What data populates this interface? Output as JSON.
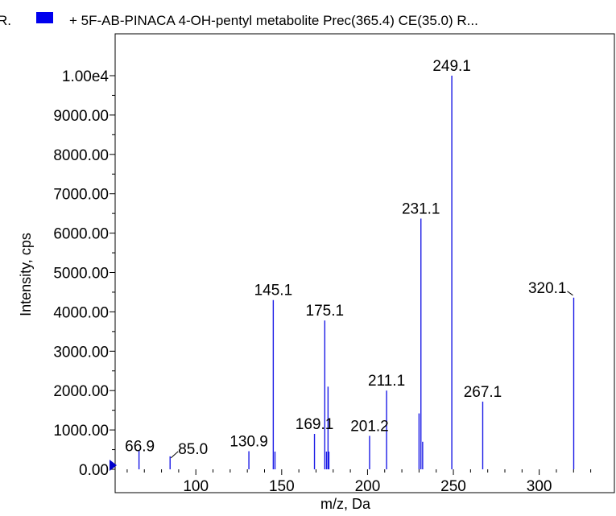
{
  "chart_data": {
    "type": "bar",
    "title_prefix": "R.",
    "title": "+ 5F-AB-PINACA 4-OH-pentyl metabolite Prec(365.4) CE(35.0) R...",
    "legend_color": "#0000ee",
    "peak_color": "#1a1ae6",
    "xlabel": "m/z, Da",
    "ylabel": "Intensity, cps",
    "xlim": [
      53,
      333
    ],
    "ylim": [
      0,
      10000
    ],
    "x_ticks": [
      {
        "value": 100,
        "label": "100"
      },
      {
        "value": 150,
        "label": "150"
      },
      {
        "value": 200,
        "label": "200"
      },
      {
        "value": 250,
        "label": "250"
      },
      {
        "value": 300,
        "label": "300"
      }
    ],
    "y_ticks": [
      {
        "value": 0,
        "label": "0.00"
      },
      {
        "value": 1000,
        "label": "1000.00"
      },
      {
        "value": 2000,
        "label": "2000.00"
      },
      {
        "value": 3000,
        "label": "3000.00"
      },
      {
        "value": 4000,
        "label": "4000.00"
      },
      {
        "value": 5000,
        "label": "5000.00"
      },
      {
        "value": 6000,
        "label": "6000.00"
      },
      {
        "value": 7000,
        "label": "7000.00"
      },
      {
        "value": 8000,
        "label": "8000.00"
      },
      {
        "value": 9000,
        "label": "9000.00"
      },
      {
        "value": 10000,
        "label": "1.00e4"
      }
    ],
    "peaks": [
      {
        "mz": 66.9,
        "intensity": 480,
        "label": "66.9"
      },
      {
        "mz": 85.0,
        "intensity": 330,
        "label": "85.0"
      },
      {
        "mz": 130.9,
        "intensity": 460,
        "label": "130.9"
      },
      {
        "mz": 145.1,
        "intensity": 4300,
        "label": "145.1"
      },
      {
        "mz": 146.1,
        "intensity": 450,
        "label": ""
      },
      {
        "mz": 169.1,
        "intensity": 900,
        "label": "169.1"
      },
      {
        "mz": 175.1,
        "intensity": 3780,
        "label": "175.1"
      },
      {
        "mz": 176.1,
        "intensity": 450,
        "label": ""
      },
      {
        "mz": 177.0,
        "intensity": 2100,
        "label": ""
      },
      {
        "mz": 177.5,
        "intensity": 450,
        "label": ""
      },
      {
        "mz": 201.2,
        "intensity": 850,
        "label": "201.2"
      },
      {
        "mz": 211.1,
        "intensity": 2000,
        "label": "211.1"
      },
      {
        "mz": 230.0,
        "intensity": 1420,
        "label": ""
      },
      {
        "mz": 231.1,
        "intensity": 6370,
        "label": "231.1"
      },
      {
        "mz": 232.1,
        "intensity": 700,
        "label": ""
      },
      {
        "mz": 249.1,
        "intensity": 10000,
        "label": "249.1"
      },
      {
        "mz": 267.1,
        "intensity": 1720,
        "label": "267.1"
      },
      {
        "mz": 320.1,
        "intensity": 4360,
        "label": "320.1"
      }
    ]
  }
}
